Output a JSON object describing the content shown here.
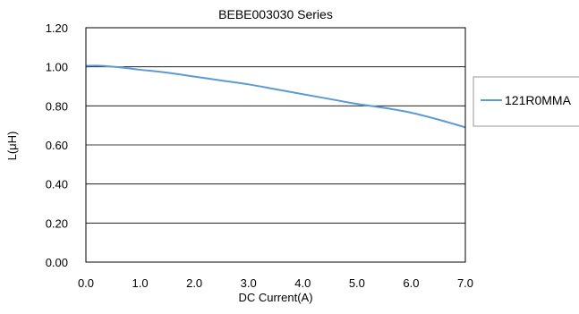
{
  "chart_data": {
    "type": "line",
    "title": "BEBE003030 Series",
    "xlabel": "DC Current(A)",
    "ylabel": "L(μH)",
    "xlim": [
      0.0,
      7.0
    ],
    "ylim": [
      0.0,
      1.2
    ],
    "x_ticks": [
      "0.0",
      "1.0",
      "2.0",
      "3.0",
      "4.0",
      "5.0",
      "6.0",
      "7.0"
    ],
    "y_ticks": [
      "0.00",
      "0.20",
      "0.40",
      "0.60",
      "0.80",
      "1.00",
      "1.20"
    ],
    "grid": "horizontal",
    "legend_position": "right",
    "series": [
      {
        "name": "121R0MMA",
        "color": "#5B9BD5",
        "x": [
          0.0,
          0.3,
          0.7,
          1.0,
          1.5,
          2.0,
          2.5,
          3.0,
          3.5,
          4.0,
          4.5,
          5.0,
          5.5,
          6.0,
          6.5,
          7.0
        ],
        "y": [
          1.005,
          1.005,
          0.995,
          0.985,
          0.97,
          0.95,
          0.93,
          0.91,
          0.885,
          0.86,
          0.835,
          0.81,
          0.79,
          0.765,
          0.73,
          0.69
        ]
      }
    ]
  }
}
